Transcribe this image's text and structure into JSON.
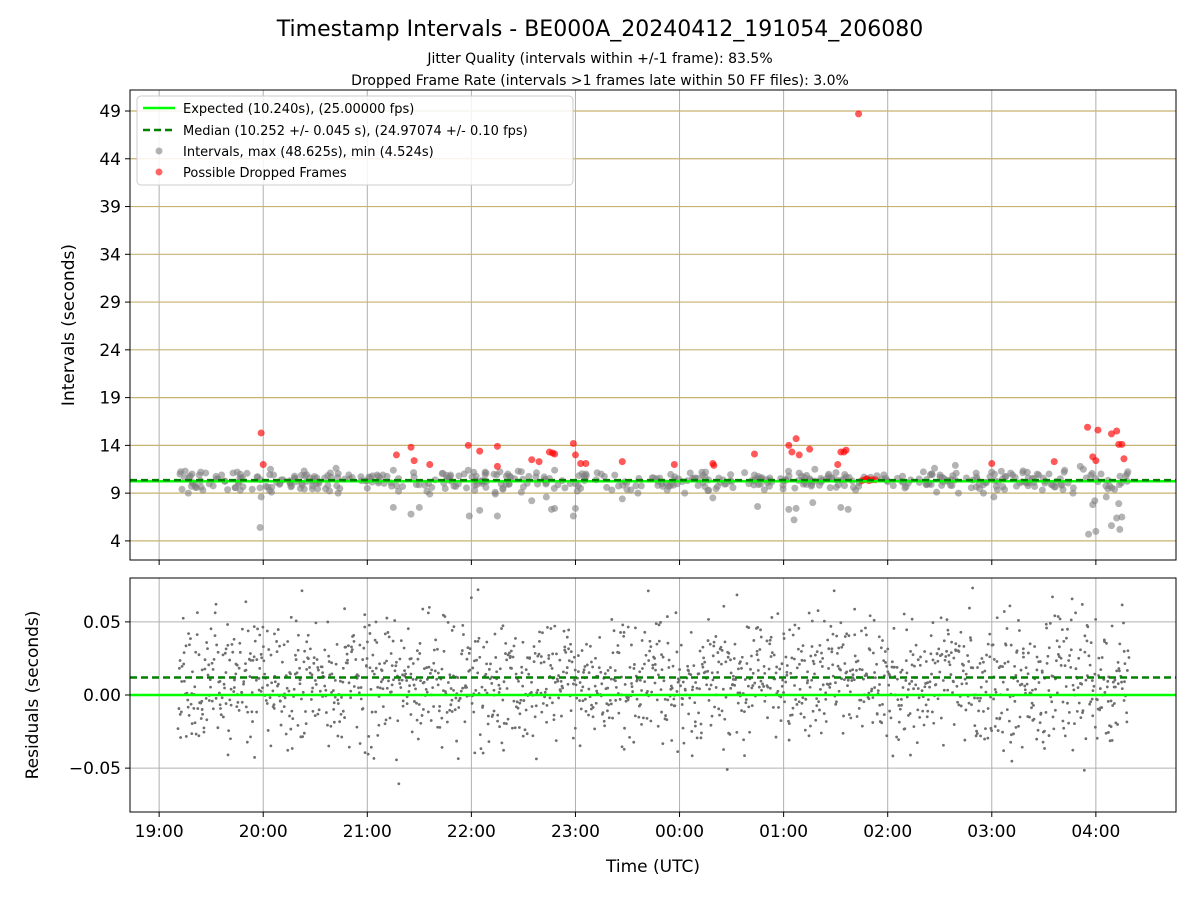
{
  "title": "Timestamp Intervals - BE000A_20240412_191054_206080",
  "subtitle_jitter": "Jitter Quality (intervals within +/-1 frame): 83.5%",
  "subtitle_dropped": "Dropped Frame Rate (intervals >1 frames late within 50 FF files): 3.0%",
  "colors": {
    "expected": "#00ff00",
    "median": "#008000",
    "intervals": "#808080",
    "dropped": "#ff0000",
    "gridline_horizontal": "#c8b272",
    "grid": "#b0b0b0"
  },
  "chart_data": [
    {
      "type": "scatter",
      "panel": "top",
      "ylabel": "Intervals (seconds)",
      "xlim_hours": [
        18.72,
        28.77
      ],
      "ylim": [
        2.0,
        51.2
      ],
      "x_ticks": [
        {
          "hours": 19,
          "label": "19:00"
        },
        {
          "hours": 20,
          "label": "20:00"
        },
        {
          "hours": 21,
          "label": "21:00"
        },
        {
          "hours": 22,
          "label": "22:00"
        },
        {
          "hours": 23,
          "label": "23:00"
        },
        {
          "hours": 24,
          "label": "00:00"
        },
        {
          "hours": 25,
          "label": "01:00"
        },
        {
          "hours": 26,
          "label": "02:00"
        },
        {
          "hours": 27,
          "label": "03:00"
        },
        {
          "hours": 28,
          "label": "04:00"
        }
      ],
      "y_ticks": [
        4,
        9,
        14,
        19,
        24,
        29,
        34,
        39,
        44,
        49
      ],
      "expected_line": 10.24,
      "median_line": 10.252,
      "legend": {
        "placement": "upper-left",
        "entries": [
          {
            "kind": "solid-line",
            "color": "#00ff00",
            "label": "Expected (10.240s), (25.00000 fps)"
          },
          {
            "kind": "dashed-line",
            "color": "#008000",
            "label": "Median (10.252 +/- 0.045 s), (24.97074 +/- 0.10 fps)"
          },
          {
            "kind": "dot",
            "color": "#808080",
            "label": "Intervals, max (48.625s), min (4.524s)"
          },
          {
            "kind": "dot",
            "color": "#ff0000",
            "label": "Possible Dropped Frames"
          }
        ]
      },
      "series": [
        {
          "name": "Intervals",
          "note": "representative outliers read off the plot; the dense band near 10 s is sampled",
          "points": [
            [
              19.2,
              11.0
            ],
            [
              19.22,
              9.4
            ],
            [
              19.25,
              11.3
            ],
            [
              19.28,
              9.0
            ],
            [
              19.3,
              10.8
            ],
            [
              19.35,
              9.6
            ],
            [
              19.4,
              11.2
            ],
            [
              19.42,
              9.3
            ],
            [
              19.6,
              10.9
            ],
            [
              19.75,
              11.2
            ],
            [
              19.78,
              9.3
            ],
            [
              19.97,
              5.4
            ],
            [
              19.98,
              8.6
            ],
            [
              20.07,
              11.5
            ],
            [
              20.08,
              9.1
            ],
            [
              20.1,
              10.9
            ],
            [
              20.3,
              10.6
            ],
            [
              20.45,
              10.6
            ],
            [
              20.7,
              11.6
            ],
            [
              20.72,
              9.0
            ],
            [
              21.05,
              10.8
            ],
            [
              21.15,
              10.9
            ],
            [
              21.25,
              11.4
            ],
            [
              21.25,
              7.5
            ],
            [
              21.3,
              9.2
            ],
            [
              21.42,
              6.8
            ],
            [
              21.45,
              10.7
            ],
            [
              21.5,
              7.5
            ],
            [
              21.6,
              8.9
            ],
            [
              21.62,
              9.6
            ],
            [
              21.8,
              10.9
            ],
            [
              21.85,
              9.7
            ],
            [
              21.93,
              11.0
            ],
            [
              21.97,
              11.4
            ],
            [
              21.98,
              6.6
            ],
            [
              22.08,
              7.2
            ],
            [
              22.1,
              10.3
            ],
            [
              22.23,
              8.9
            ],
            [
              22.25,
              6.6
            ],
            [
              22.35,
              11.0
            ],
            [
              22.45,
              11.3
            ],
            [
              22.48,
              9.1
            ],
            [
              22.58,
              8.2
            ],
            [
              22.62,
              10.7
            ],
            [
              22.72,
              8.6
            ],
            [
              22.77,
              7.3
            ],
            [
              22.8,
              7.4
            ],
            [
              22.8,
              11.4
            ],
            [
              22.95,
              10.0
            ],
            [
              22.98,
              6.6
            ],
            [
              23.0,
              7.4
            ],
            [
              23.05,
              9.5
            ],
            [
              23.1,
              11.0
            ],
            [
              23.2,
              10.4
            ],
            [
              23.3,
              9.6
            ],
            [
              23.45,
              8.4
            ],
            [
              23.6,
              9.0
            ],
            [
              23.75,
              10.6
            ],
            [
              23.95,
              10.4
            ],
            [
              24.05,
              9.0
            ],
            [
              24.15,
              10.6
            ],
            [
              24.25,
              11.2
            ],
            [
              24.28,
              9.3
            ],
            [
              24.32,
              8.5
            ],
            [
              24.5,
              10.2
            ],
            [
              24.72,
              10.9
            ],
            [
              24.75,
              7.6
            ],
            [
              25.05,
              7.3
            ],
            [
              25.1,
              6.2
            ],
            [
              25.12,
              7.4
            ],
            [
              25.15,
              11.1
            ],
            [
              25.25,
              10.5
            ],
            [
              25.28,
              8.0
            ],
            [
              25.3,
              11.5
            ],
            [
              25.55,
              7.5
            ],
            [
              25.6,
              10.7
            ],
            [
              25.62,
              7.3
            ],
            [
              25.72,
              9.7
            ],
            [
              26.0,
              10.2
            ],
            [
              26.15,
              10.1
            ],
            [
              26.45,
              11.6
            ],
            [
              26.47,
              9.1
            ],
            [
              26.65,
              11.9
            ],
            [
              26.68,
              9.0
            ],
            [
              26.85,
              11.1
            ],
            [
              26.92,
              9.0
            ],
            [
              27.0,
              11.2
            ],
            [
              27.02,
              8.6
            ],
            [
              27.2,
              10.9
            ],
            [
              27.35,
              10.6
            ],
            [
              27.45,
              10.9
            ],
            [
              27.55,
              11.0
            ],
            [
              27.62,
              10.2
            ],
            [
              27.7,
              11.4
            ],
            [
              27.78,
              9.0
            ],
            [
              27.85,
              11.8
            ],
            [
              27.88,
              11.5
            ],
            [
              27.93,
              4.7
            ],
            [
              27.97,
              7.8
            ],
            [
              27.99,
              8.2
            ],
            [
              28.0,
              5.0
            ],
            [
              28.02,
              10.2
            ],
            [
              28.05,
              11.0
            ],
            [
              28.1,
              8.6
            ],
            [
              28.15,
              5.6
            ],
            [
              28.2,
              6.4
            ],
            [
              28.22,
              7.9
            ],
            [
              28.23,
              5.2
            ],
            [
              28.25,
              6.5
            ],
            [
              28.3,
              11.0
            ]
          ]
        },
        {
          "name": "Possible Dropped Frames",
          "points": [
            [
              19.98,
              15.3
            ],
            [
              20.0,
              12.0
            ],
            [
              21.28,
              13.0
            ],
            [
              21.42,
              13.8
            ],
            [
              21.45,
              12.4
            ],
            [
              21.6,
              12.0
            ],
            [
              21.97,
              14.0
            ],
            [
              22.08,
              13.4
            ],
            [
              22.25,
              13.9
            ],
            [
              22.25,
              11.8
            ],
            [
              22.58,
              12.5
            ],
            [
              22.65,
              12.3
            ],
            [
              22.75,
              13.3
            ],
            [
              22.78,
              13.2
            ],
            [
              22.8,
              13.1
            ],
            [
              22.98,
              14.2
            ],
            [
              23.0,
              13.0
            ],
            [
              23.05,
              12.1
            ],
            [
              23.1,
              12.1
            ],
            [
              23.45,
              12.3
            ],
            [
              23.95,
              12.0
            ],
            [
              24.32,
              12.1
            ],
            [
              24.33,
              11.9
            ],
            [
              24.72,
              13.1
            ],
            [
              25.05,
              14.0
            ],
            [
              25.08,
              13.3
            ],
            [
              25.12,
              14.7
            ],
            [
              25.15,
              13.0
            ],
            [
              25.25,
              13.6
            ],
            [
              25.55,
              13.3
            ],
            [
              25.58,
              13.3
            ],
            [
              25.6,
              13.5
            ],
            [
              25.52,
              12.0
            ],
            [
              25.72,
              48.7
            ],
            [
              25.75,
              10.3
            ],
            [
              25.78,
              10.4
            ],
            [
              25.8,
              10.5
            ],
            [
              25.82,
              10.3
            ],
            [
              25.85,
              10.4
            ],
            [
              25.88,
              10.4
            ],
            [
              27.0,
              12.1
            ],
            [
              27.6,
              12.3
            ],
            [
              27.92,
              15.9
            ],
            [
              27.97,
              12.8
            ],
            [
              28.0,
              12.4
            ],
            [
              28.02,
              15.6
            ],
            [
              28.15,
              15.2
            ],
            [
              28.2,
              15.5
            ],
            [
              28.22,
              14.1
            ],
            [
              28.25,
              14.1
            ],
            [
              28.27,
              12.6
            ]
          ]
        }
      ]
    },
    {
      "type": "scatter",
      "panel": "bottom",
      "xlabel": "Time (UTC)",
      "ylabel": "Residuals (seconds)",
      "xlim_hours": [
        18.72,
        28.77
      ],
      "ylim": [
        -0.08,
        0.08
      ],
      "y_ticks": [
        {
          "value": 0.05,
          "label": "0.05"
        },
        {
          "value": 0.0,
          "label": "0.00"
        },
        {
          "value": -0.05,
          "label": "−0.05"
        }
      ],
      "expected_line": 0.0,
      "median_line": 0.012,
      "series": [
        {
          "name": "Residuals",
          "point_count": 1700,
          "x_range_hours": [
            19.18,
            28.32
          ],
          "center": 0.01,
          "spread_std": 0.022,
          "clip": [
            -0.078,
            0.078
          ],
          "seed": 7
        }
      ]
    }
  ]
}
